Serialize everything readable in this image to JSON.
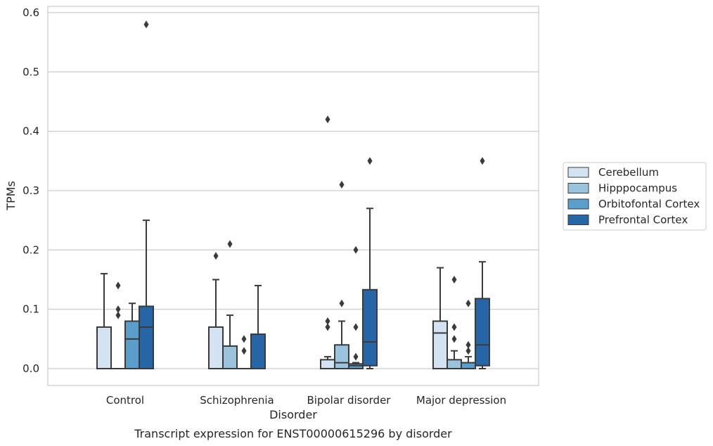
{
  "chart_data": {
    "type": "box",
    "xlabel": "Disorder",
    "ylabel": "TPMs",
    "caption": "Transcript expression for ENST00000615296 by disorder",
    "ylim": [
      -0.028,
      0.61
    ],
    "yticks": [
      "0.0",
      "0.1",
      "0.2",
      "0.3",
      "0.4",
      "0.5",
      "0.6"
    ],
    "grid": true,
    "legend_position": "right",
    "categories": [
      "Control",
      "Schizophrenia",
      "Bipolar disorder",
      "Major depression"
    ],
    "series": [
      {
        "name": "Cerebellum",
        "color": "#d3e3f2",
        "boxes": [
          {
            "q1": 0.0,
            "median": 0.0,
            "q3": 0.07,
            "whislo": 0.0,
            "whishi": 0.16,
            "fliers": []
          },
          {
            "q1": 0.0,
            "median": 0.0,
            "q3": 0.07,
            "whislo": 0.0,
            "whishi": 0.15,
            "fliers": [
              0.19
            ]
          },
          {
            "q1": 0.0,
            "median": 0.0,
            "q3": 0.015,
            "whislo": 0.0,
            "whishi": 0.02,
            "fliers": [
              0.07,
              0.08,
              0.42
            ]
          },
          {
            "q1": 0.0,
            "median": 0.06,
            "q3": 0.08,
            "whislo": 0.0,
            "whishi": 0.17,
            "fliers": []
          }
        ]
      },
      {
        "name": "Hipppocampus",
        "color": "#9ac3de",
        "boxes": [
          {
            "q1": 0.0,
            "median": 0.0,
            "q3": 0.0,
            "whislo": 0.0,
            "whishi": 0.0,
            "fliers": [
              0.09,
              0.1,
              0.14
            ]
          },
          {
            "q1": 0.0,
            "median": 0.0,
            "q3": 0.038,
            "whislo": 0.0,
            "whishi": 0.09,
            "fliers": [
              0.21
            ]
          },
          {
            "q1": 0.0,
            "median": 0.01,
            "q3": 0.04,
            "whislo": 0.0,
            "whishi": 0.08,
            "fliers": [
              0.11,
              0.31
            ]
          },
          {
            "q1": 0.0,
            "median": 0.0,
            "q3": 0.015,
            "whislo": 0.0,
            "whishi": 0.03,
            "fliers": [
              0.05,
              0.07,
              0.15
            ]
          }
        ]
      },
      {
        "name": "Orbitofontal Cortex",
        "color": "#5a9fcc",
        "boxes": [
          {
            "q1": 0.0,
            "median": 0.05,
            "q3": 0.08,
            "whislo": 0.0,
            "whishi": 0.11,
            "fliers": []
          },
          {
            "q1": 0.0,
            "median": 0.0,
            "q3": 0.0,
            "whislo": 0.0,
            "whishi": 0.0,
            "fliers": [
              0.03,
              0.05
            ]
          },
          {
            "q1": 0.0,
            "median": 0.005,
            "q3": 0.008,
            "whislo": 0.0,
            "whishi": 0.01,
            "fliers": [
              0.02,
              0.07,
              0.2
            ]
          },
          {
            "q1": 0.0,
            "median": 0.0,
            "q3": 0.01,
            "whislo": 0.0,
            "whishi": 0.02,
            "fliers": [
              0.03,
              0.04,
              0.11
            ]
          }
        ]
      },
      {
        "name": "Prefrontal Cortex",
        "color": "#2766a6",
        "boxes": [
          {
            "q1": 0.0,
            "median": 0.07,
            "q3": 0.105,
            "whislo": 0.0,
            "whishi": 0.25,
            "fliers": [
              0.58
            ]
          },
          {
            "q1": 0.0,
            "median": 0.0,
            "q3": 0.058,
            "whislo": 0.0,
            "whishi": 0.14,
            "fliers": []
          },
          {
            "q1": 0.005,
            "median": 0.045,
            "q3": 0.133,
            "whislo": 0.0,
            "whishi": 0.27,
            "fliers": [
              0.35
            ]
          },
          {
            "q1": 0.005,
            "median": 0.04,
            "q3": 0.118,
            "whislo": 0.0,
            "whishi": 0.18,
            "fliers": [
              0.35
            ]
          }
        ]
      }
    ]
  }
}
